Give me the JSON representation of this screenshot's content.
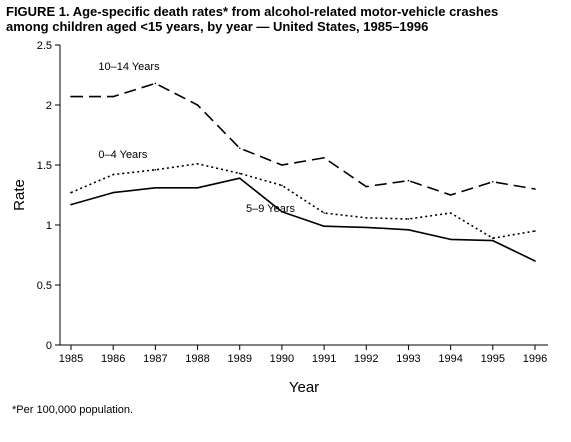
{
  "figure": {
    "title_line1": "FIGURE 1. Age-specific death rates* from alcohol-related motor-vehicle crashes",
    "title_line2": "among children aged <15 years, by year — United States, 1985–1996",
    "footnote": "*Per 100,000 population."
  },
  "chart_data": {
    "type": "line",
    "title": "FIGURE 1. Age-specific death rates* from alcohol-related motor-vehicle crashes among children aged <15 years, by year — United States, 1985–1996",
    "xlabel": "Year",
    "ylabel": "Rate",
    "x": [
      1985,
      1986,
      1987,
      1988,
      1989,
      1990,
      1991,
      1992,
      1993,
      1994,
      1995,
      1996
    ],
    "ylim": [
      0,
      2.5
    ],
    "yticks": [
      0,
      0.5,
      1,
      1.5,
      2,
      2.5
    ],
    "ytick_labels": [
      "0",
      "0.5",
      "1",
      "1.5",
      "2",
      "2.5"
    ],
    "grid": false,
    "series": [
      {
        "name": "10–14 Years",
        "style": "dashed",
        "values": [
          2.07,
          2.07,
          2.18,
          2.0,
          1.64,
          1.5,
          1.56,
          1.32,
          1.37,
          1.25,
          1.36,
          1.3
        ]
      },
      {
        "name": "0–4 Years",
        "style": "dotted",
        "values": [
          1.27,
          1.42,
          1.46,
          1.51,
          1.43,
          1.33,
          1.1,
          1.06,
          1.05,
          1.1,
          0.89,
          0.95
        ]
      },
      {
        "name": "5–9 Years",
        "style": "solid",
        "values": [
          1.17,
          1.27,
          1.31,
          1.31,
          1.39,
          1.11,
          0.99,
          0.98,
          0.96,
          0.88,
          0.87,
          0.7
        ]
      }
    ]
  }
}
